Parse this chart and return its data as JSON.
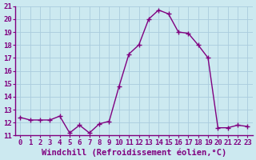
{
  "x": [
    0,
    1,
    2,
    3,
    4,
    5,
    6,
    7,
    8,
    9,
    10,
    11,
    12,
    13,
    14,
    15,
    16,
    17,
    18,
    19,
    20,
    21,
    22,
    23
  ],
  "y": [
    12.4,
    12.2,
    12.2,
    12.2,
    12.5,
    11.2,
    11.8,
    11.2,
    11.9,
    12.1,
    14.8,
    17.3,
    18.0,
    20.0,
    20.7,
    20.4,
    19.0,
    18.9,
    18.0,
    17.0,
    11.6,
    11.6,
    11.8,
    11.7
  ],
  "ylim": [
    11,
    21
  ],
  "xlim": [
    -0.5,
    23.5
  ],
  "yticks": [
    11,
    12,
    13,
    14,
    15,
    16,
    17,
    18,
    19,
    20,
    21
  ],
  "xticks": [
    0,
    1,
    2,
    3,
    4,
    5,
    6,
    7,
    8,
    9,
    10,
    11,
    12,
    13,
    14,
    15,
    16,
    17,
    18,
    19,
    20,
    21,
    22,
    23
  ],
  "xlabel": "Windchill (Refroidissement éolien,°C)",
  "line_color": "#800080",
  "marker": "+",
  "marker_size": 4,
  "line_width": 1.0,
  "bg_color": "#cce9f0",
  "grid_color": "#aaccdd",
  "tick_label_fontsize": 6.5,
  "xlabel_fontsize": 7.5
}
